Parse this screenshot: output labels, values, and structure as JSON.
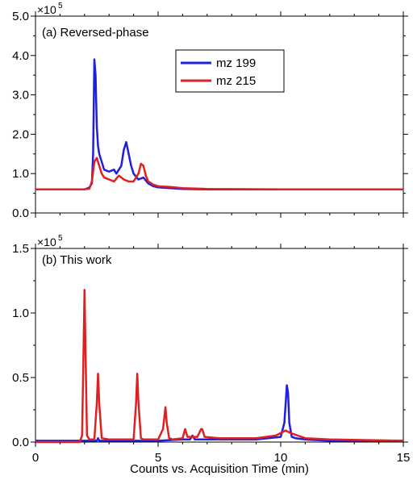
{
  "chart_data": [
    {
      "type": "line",
      "panel_label": "(a) Reversed-phase",
      "multiplier_base": "×10",
      "multiplier_exp": "5",
      "xlabel": "",
      "xlim": [
        0,
        15
      ],
      "ylim": [
        0,
        5.0
      ],
      "x_ticks": [
        0,
        5,
        10,
        15
      ],
      "y_ticks": [
        0.0,
        1.0,
        2.0,
        3.0,
        4.0,
        5.0
      ],
      "y_tick_labels": [
        "0.0",
        "1.0",
        "2.0",
        "3.0",
        "4.0",
        "5.0"
      ],
      "legend_placement": "top-center",
      "series": [
        {
          "name": "mz 199",
          "color": "#1f1fe0",
          "x": [
            0,
            2.0,
            2.1,
            2.2,
            2.3,
            2.35,
            2.4,
            2.45,
            2.5,
            2.55,
            2.6,
            2.7,
            2.8,
            3.0,
            3.2,
            3.3,
            3.4,
            3.5,
            3.6,
            3.7,
            3.8,
            3.9,
            4.0,
            4.2,
            4.4,
            4.6,
            4.8,
            5.0,
            5.5,
            6.0,
            7.0,
            10.0,
            15.0
          ],
          "y": [
            0.6,
            0.6,
            0.62,
            0.65,
            0.75,
            1.5,
            3.9,
            3.5,
            2.2,
            1.7,
            1.5,
            1.3,
            1.1,
            1.05,
            1.1,
            1.0,
            1.1,
            1.2,
            1.6,
            1.8,
            1.5,
            1.2,
            1.0,
            0.85,
            0.9,
            0.75,
            0.68,
            0.65,
            0.63,
            0.61,
            0.6,
            0.6,
            0.6
          ]
        },
        {
          "name": "mz 215",
          "color": "#e02020",
          "x": [
            0,
            2.0,
            2.2,
            2.3,
            2.4,
            2.5,
            2.6,
            2.7,
            2.8,
            3.0,
            3.2,
            3.4,
            3.6,
            3.8,
            4.0,
            4.2,
            4.3,
            4.4,
            4.5,
            4.6,
            4.8,
            5.0,
            5.5,
            6.0,
            7.0,
            10.0,
            15.0
          ],
          "y": [
            0.6,
            0.6,
            0.62,
            0.8,
            1.3,
            1.4,
            1.2,
            1.0,
            0.9,
            0.85,
            0.8,
            0.95,
            0.85,
            0.8,
            0.8,
            1.0,
            1.25,
            1.2,
            0.95,
            0.8,
            0.72,
            0.68,
            0.66,
            0.63,
            0.61,
            0.6,
            0.6
          ]
        }
      ]
    },
    {
      "type": "line",
      "panel_label": "(b) This work",
      "multiplier_base": "×10",
      "multiplier_exp": "5",
      "xlabel": "Counts vs. Acquisition Time (min)",
      "xlim": [
        0,
        15
      ],
      "ylim": [
        0,
        1.5
      ],
      "x_ticks": [
        0,
        5,
        10,
        15
      ],
      "x_tick_labels": [
        "0",
        "5",
        "10",
        "15"
      ],
      "y_ticks": [
        0.0,
        0.5,
        1.0,
        1.5
      ],
      "y_tick_labels": [
        "0.0",
        "0.5",
        "1.0",
        "1.5"
      ],
      "series": [
        {
          "name": "mz 199",
          "color": "#1f1fe0",
          "x": [
            0,
            2.0,
            2.5,
            2.55,
            2.6,
            3.0,
            4.0,
            5.0,
            6.0,
            6.3,
            6.4,
            6.5,
            6.7,
            7.5,
            9.0,
            10.0,
            10.15,
            10.25,
            10.3,
            10.35,
            10.45,
            10.6,
            11.0,
            12.0,
            15.0
          ],
          "y": [
            0.01,
            0.01,
            0.01,
            0.03,
            0.01,
            0.01,
            0.01,
            0.01,
            0.02,
            0.02,
            0.05,
            0.02,
            0.02,
            0.02,
            0.02,
            0.04,
            0.15,
            0.44,
            0.38,
            0.15,
            0.04,
            0.03,
            0.02,
            0.01,
            0.01
          ]
        },
        {
          "name": "mz 215",
          "color": "#e02020",
          "x": [
            0,
            1.8,
            1.9,
            1.95,
            2.0,
            2.05,
            2.1,
            2.2,
            2.4,
            2.5,
            2.55,
            2.6,
            2.7,
            3.0,
            4.0,
            4.1,
            4.15,
            4.2,
            4.3,
            4.4,
            5.0,
            5.2,
            5.3,
            5.35,
            5.45,
            5.6,
            6.0,
            6.1,
            6.2,
            6.6,
            6.75,
            6.8,
            6.9,
            7.5,
            9.0,
            9.8,
            10.0,
            10.2,
            10.4,
            10.7,
            11.0,
            12.0,
            15.0
          ],
          "y": [
            0.0,
            0.0,
            0.05,
            0.6,
            1.18,
            0.6,
            0.05,
            0.02,
            0.02,
            0.3,
            0.53,
            0.3,
            0.03,
            0.02,
            0.02,
            0.3,
            0.53,
            0.3,
            0.03,
            0.02,
            0.02,
            0.1,
            0.27,
            0.15,
            0.03,
            0.02,
            0.03,
            0.1,
            0.04,
            0.04,
            0.1,
            0.1,
            0.04,
            0.03,
            0.03,
            0.05,
            0.07,
            0.09,
            0.07,
            0.05,
            0.03,
            0.02,
            0.01
          ]
        }
      ]
    }
  ]
}
